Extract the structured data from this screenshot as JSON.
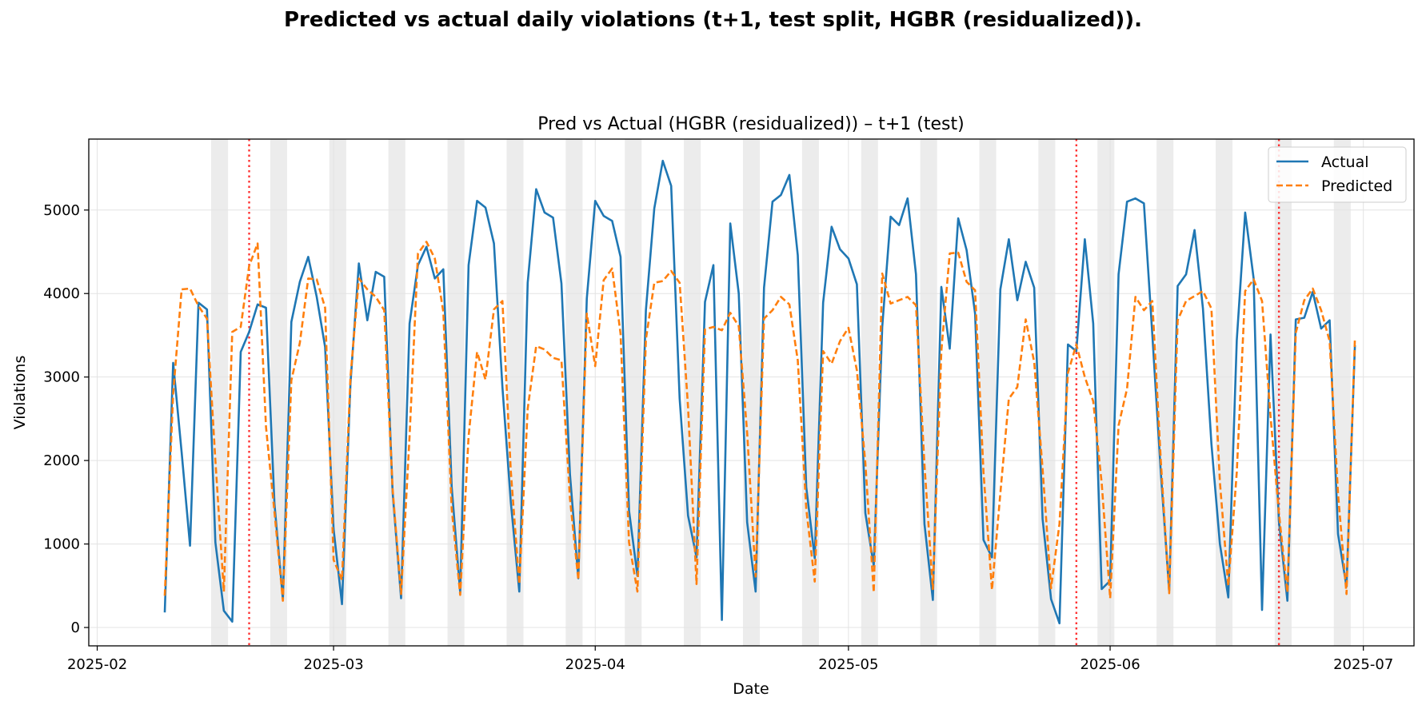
{
  "figure": {
    "suptitle": "Predicted vs actual daily violations (t+1, test split, HGBR (residualized))."
  },
  "chart_data": {
    "type": "line",
    "title": "Pred vs Actual (HGBR (residualized)) – t+1 (test)",
    "xlabel": "Date",
    "ylabel": "Violations",
    "x_start": "2025-02-09",
    "x_tick_labels": [
      "2025-02",
      "2025-03",
      "2025-04",
      "2025-05",
      "2025-06",
      "2025-07"
    ],
    "x_ticks": [
      "2025-02-01",
      "2025-03-01",
      "2025-04-01",
      "2025-05-01",
      "2025-06-01",
      "2025-07-01"
    ],
    "xlim": [
      "2025-01-31",
      "2025-07-07"
    ],
    "y_ticks": [
      0,
      1000,
      2000,
      3000,
      4000,
      5000
    ],
    "y_tick_labels": [
      "0",
      "1000",
      "2000",
      "3000",
      "4000",
      "5000"
    ],
    "ylim": [
      -220,
      5850
    ],
    "grid": true,
    "legend_position": "upper right",
    "weekend_shading_color": "#ececec",
    "vertical_markers": {
      "dates": [
        "2025-02-19",
        "2025-05-28",
        "2025-06-21"
      ],
      "color": "#ff3333",
      "style": "dotted"
    },
    "series": [
      {
        "name": "Actual",
        "color": "#1f77b4",
        "style": "solid",
        "values": [
          180,
          3170,
          2100,
          980,
          3890,
          3810,
          1020,
          200,
          70,
          3300,
          3540,
          3870,
          3830,
          1480,
          340,
          3660,
          4140,
          4440,
          3960,
          3360,
          1180,
          280,
          2920,
          4360,
          3680,
          4260,
          4200,
          1620,
          350,
          3640,
          4340,
          4560,
          4180,
          4290,
          1680,
          420,
          4340,
          5110,
          5030,
          4600,
          2880,
          1500,
          430,
          4130,
          5250,
          4970,
          4910,
          4120,
          1840,
          590,
          3940,
          5110,
          4930,
          4870,
          4440,
          1400,
          620,
          3800,
          5020,
          5590,
          5290,
          2740,
          1340,
          840,
          3900,
          4340,
          90,
          4840,
          4000,
          1260,
          430,
          4070,
          5100,
          5180,
          5420,
          4460,
          1680,
          830,
          3890,
          4800,
          4530,
          4420,
          4110,
          1370,
          740,
          3600,
          4920,
          4820,
          5140,
          4230,
          1240,
          330,
          4080,
          3340,
          4900,
          4520,
          3760,
          1050,
          840,
          4050,
          4650,
          3920,
          4380,
          4070,
          1300,
          340,
          50,
          3390,
          3310,
          4650,
          3640,
          460,
          560,
          4230,
          5100,
          5140,
          5080,
          3510,
          1860,
          440,
          4090,
          4230,
          4760,
          3820,
          2200,
          1000,
          360,
          3440,
          4970,
          4180,
          210,
          3510,
          1270,
          320,
          3690,
          3710,
          4020,
          3580,
          3680,
          1120,
          490,
          3380
        ],
        "note": ""
      },
      {
        "name": "Predicted",
        "color": "#ff7f0e",
        "style": "dashed",
        "values": [
          380,
          2800,
          4050,
          4060,
          3850,
          3700,
          2000,
          430,
          3540,
          3600,
          4330,
          4600,
          2400,
          1380,
          320,
          2960,
          3410,
          4180,
          4170,
          3830,
          810,
          570,
          3000,
          4180,
          4050,
          3960,
          3800,
          1660,
          400,
          2290,
          4480,
          4620,
          4420,
          3780,
          1420,
          390,
          2290,
          3300,
          2970,
          3810,
          3910,
          1870,
          520,
          2620,
          3370,
          3330,
          3230,
          3200,
          1550,
          570,
          3760,
          3130,
          4160,
          4300,
          3520,
          1020,
          430,
          3450,
          4130,
          4150,
          4270,
          4130,
          2640,
          520,
          3570,
          3600,
          3560,
          3770,
          3610,
          2330,
          610,
          3700,
          3800,
          3960,
          3870,
          3200,
          1420,
          550,
          3310,
          3160,
          3430,
          3590,
          3080,
          1970,
          420,
          4240,
          3880,
          3920,
          3960,
          3860,
          1950,
          460,
          3310,
          4480,
          4490,
          4140,
          4040,
          1860,
          450,
          1610,
          2740,
          2880,
          3690,
          3180,
          1900,
          470,
          1240,
          3050,
          3390,
          3000,
          2710,
          1730,
          350,
          2420,
          2860,
          3960,
          3800,
          3910,
          2000,
          410,
          3680,
          3910,
          3970,
          4030,
          3820,
          1740,
          500,
          1860,
          4030,
          4170,
          3910,
          2530,
          1370,
          420,
          3530,
          3920,
          4060,
          3800,
          3430,
          1600,
          400,
          3460
        ]
      }
    ]
  }
}
